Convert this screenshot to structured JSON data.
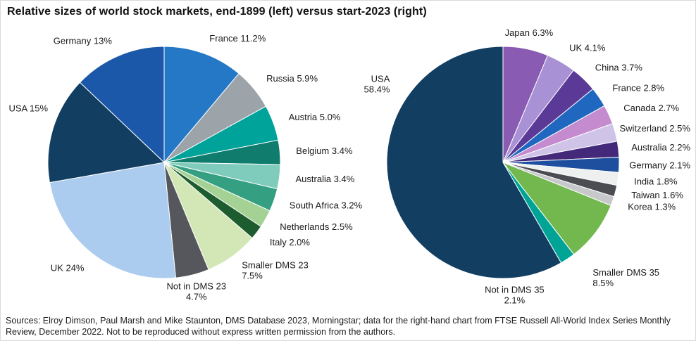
{
  "title": "Relative sizes of world stock markets, end-1899 (left) versus start-2023 (right)",
  "footer": "Sources: Elroy Dimson, Paul Marsh and Mike Staunton, DMS Database 2023, Morningstar; data for the right-hand chart from FTSE Russell All-World Index Series Monthly Review, December 2022. Not to be reproduced without express written permission from the authors.",
  "chart_data": [
    {
      "type": "pie",
      "name": "end-1899",
      "position": "left",
      "start_angle": "12-oclock",
      "direction": "clockwise",
      "slices": [
        {
          "name": "France",
          "value": 11.2,
          "label": "France 11.2%",
          "color": "#2478c5"
        },
        {
          "name": "Russia",
          "value": 5.9,
          "label": "Russia 5.9%",
          "color": "#9ca3a9"
        },
        {
          "name": "Austria",
          "value": 5.0,
          "label": "Austria 5.0%",
          "color": "#00a39a"
        },
        {
          "name": "Belgium",
          "value": 3.4,
          "label": "Belgium 3.4%",
          "color": "#0f7c6d"
        },
        {
          "name": "Australia",
          "value": 3.4,
          "label": "Australia 3.4%",
          "color": "#7fcbbc"
        },
        {
          "name": "South Africa",
          "value": 3.2,
          "label": "South Africa 3.2%",
          "color": "#35a081"
        },
        {
          "name": "Netherlands",
          "value": 2.5,
          "label": "Netherlands 2.5%",
          "color": "#a4d295"
        },
        {
          "name": "Italy",
          "value": 2.0,
          "label": "Italy 2.0%",
          "color": "#1d5c2f"
        },
        {
          "name": "Smaller DMS 23",
          "value": 7.5,
          "label": "Smaller DMS 23\n7.5%",
          "color": "#d3e7b6"
        },
        {
          "name": "Not in DMS 23",
          "value": 4.7,
          "label": "Not in DMS 23\n4.7%",
          "color": "#55575c"
        },
        {
          "name": "UK",
          "value": 24.0,
          "label": "UK 24%",
          "color": "#abccee"
        },
        {
          "name": "USA",
          "value": 15.0,
          "label": "USA 15%",
          "color": "#123e62"
        },
        {
          "name": "Germany",
          "value": 13.0,
          "label": "Germany 13%",
          "color": "#1b58a9"
        }
      ]
    },
    {
      "type": "pie",
      "name": "start-2023",
      "position": "right",
      "start_angle": "12-oclock",
      "direction": "clockwise",
      "slices": [
        {
          "name": "Japan",
          "value": 6.3,
          "label": "Japan 6.3%",
          "color": "#8a5bb3"
        },
        {
          "name": "UK",
          "value": 4.1,
          "label": "UK 4.1%",
          "color": "#a891d4"
        },
        {
          "name": "China",
          "value": 3.7,
          "label": "China 3.7%",
          "color": "#5b3a97"
        },
        {
          "name": "France",
          "value": 2.8,
          "label": "France 2.8%",
          "color": "#2068bf"
        },
        {
          "name": "Canada",
          "value": 2.7,
          "label": "Canada 2.7%",
          "color": "#c48cce"
        },
        {
          "name": "Switzerland",
          "value": 2.5,
          "label": "Switzerland 2.5%",
          "color": "#cfc4e8"
        },
        {
          "name": "Australia",
          "value": 2.2,
          "label": "Australia 2.2%",
          "color": "#44297b"
        },
        {
          "name": "Germany",
          "value": 2.1,
          "label": "Germany 2.1%",
          "color": "#1d4f9e"
        },
        {
          "name": "India",
          "value": 1.8,
          "label": "India 1.8%",
          "color": "#eef0f0"
        },
        {
          "name": "Taiwan",
          "value": 1.6,
          "label": "Taiwan 1.6%",
          "color": "#4b4d52"
        },
        {
          "name": "Korea",
          "value": 1.3,
          "label": "Korea 1.3%",
          "color": "#c6c8ca"
        },
        {
          "name": "Smaller DMS 35",
          "value": 8.5,
          "label": "Smaller DMS 35\n8.5%",
          "color": "#72b84f"
        },
        {
          "name": "Not in DMS 35",
          "value": 2.1,
          "label": "Not in DMS 35\n2.1%",
          "color": "#00a496"
        },
        {
          "name": "USA",
          "value": 58.4,
          "label": "USA\n58.4%",
          "color": "#123e62"
        }
      ]
    }
  ]
}
